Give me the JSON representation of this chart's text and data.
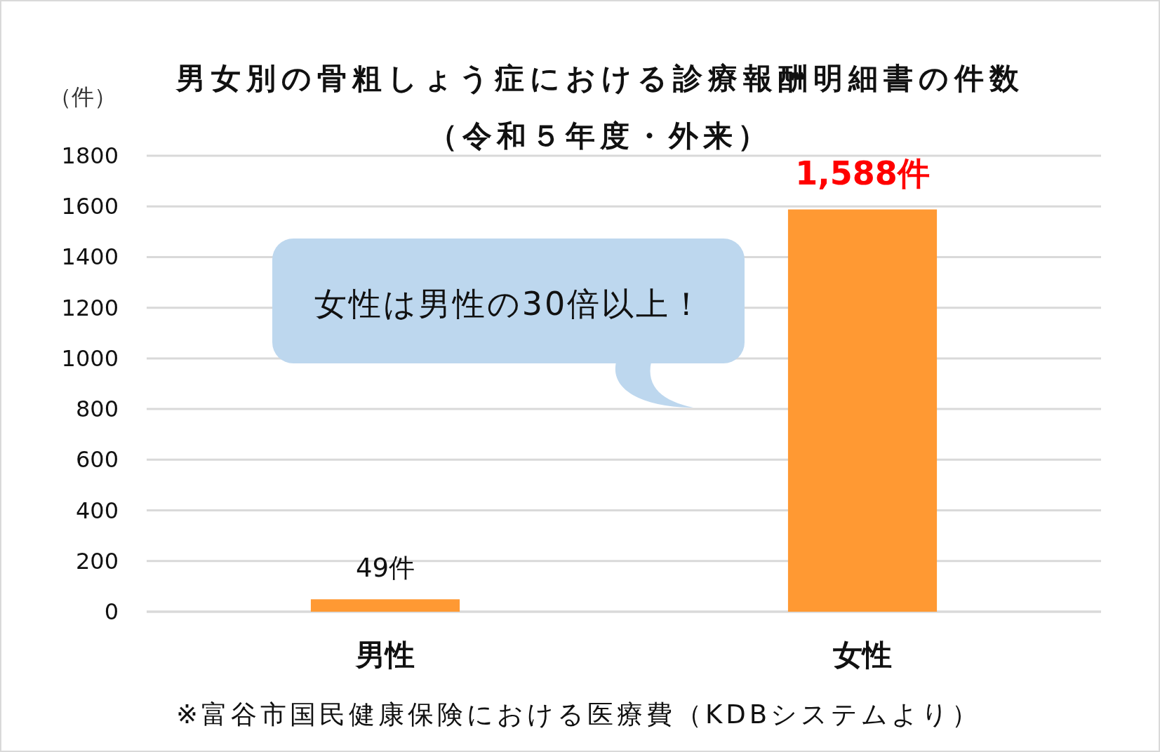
{
  "chart_data": {
    "type": "bar",
    "title": "男女別の骨粗しょう症における診療報酬明細書の件数",
    "subtitle": "（令和５年度・外来）",
    "ylabel": "（件）",
    "categories": [
      "男性",
      "女性"
    ],
    "values": [
      49,
      1588
    ],
    "color": "#ff9933",
    "value_labels": [
      "49件",
      "1,588件"
    ],
    "ylim": [
      0,
      1800
    ],
    "yticks": [
      0,
      200,
      400,
      600,
      800,
      1000,
      1200,
      1400,
      1600,
      1800
    ],
    "grid": "y",
    "annotations": [
      "女性は男性の30倍以上！",
      "※富谷市国民健康保険における医療費（KDBシステムより）"
    ]
  }
}
